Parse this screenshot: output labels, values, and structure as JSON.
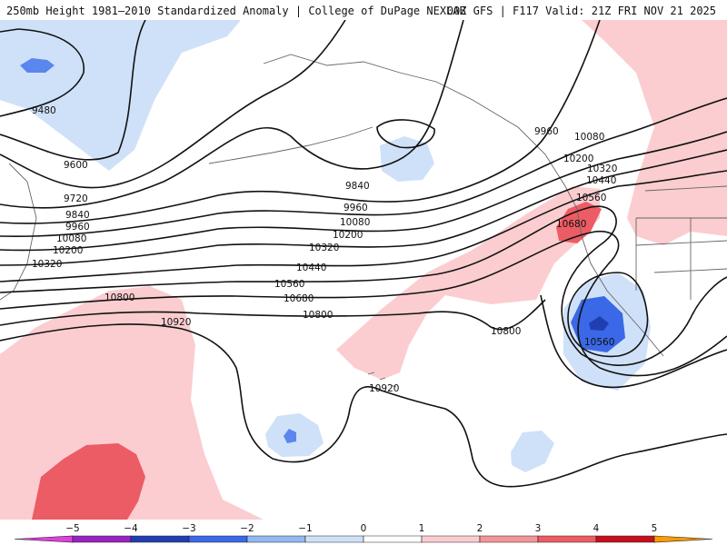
{
  "header": {
    "title_left": "250mb Height 1981–2010 Standardized Anomaly | College of DuPage NEXLAB",
    "title_right": "00Z GFS | F117 Valid: 21Z FRI NOV 21 2025"
  },
  "contour_labels": [
    "9480",
    "9600",
    "9720",
    "9840",
    "9960",
    "10080",
    "10200",
    "10320",
    "10800",
    "10920",
    "9840",
    "9960",
    "10080",
    "10200",
    "10320",
    "10440",
    "10560",
    "10680",
    "10800",
    "9960",
    "10080",
    "10200",
    "10320",
    "10440",
    "10560",
    "10680",
    "10800",
    "10560",
    "10920"
  ],
  "legend": {
    "ticks": [
      "−5",
      "−4",
      "−3",
      "−2",
      "−1",
      "0",
      "1",
      "2",
      "3",
      "4",
      "5"
    ],
    "colors": [
      "#e040e0",
      "#9a22c0",
      "#1f3fb0",
      "#3a68e6",
      "#93b8f2",
      "#cfe1f8",
      "#ffffff",
      "#fbcdd0",
      "#f39499",
      "#ec5c64",
      "#c40f1c",
      "#ff9a00",
      "#ffd23a"
    ]
  }
}
